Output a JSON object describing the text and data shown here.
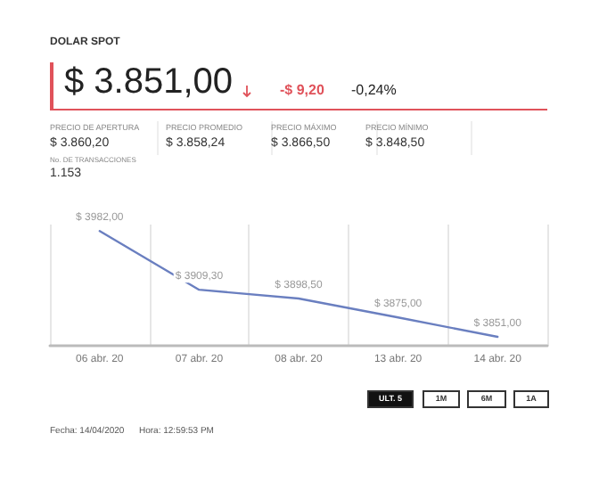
{
  "chart_data": {
    "type": "line",
    "title": "DOLAR SPOT",
    "annotations": [
      "$ 3.851,00",
      "-$ 9,20",
      "-0,24%",
      "PRECIO DE APERTURA",
      "$ 3.860,20",
      "PRECIO PROMEDIO",
      "$ 3.858,24",
      "PRECIO MÁXIMO",
      "$ 3.866,50",
      "PRECIO MÍNIMO",
      "$ 3.848,50",
      "No. DE TRANSACCIONES",
      "1.153",
      "ULT. 5",
      "1M",
      "6M",
      "1A",
      "Fecha: 14/04/2020",
      "Hora: 12:59:53 PM"
    ],
    "categories": [
      "06 abr. 20",
      "07 abr. 20",
      "08 abr. 20",
      "13 abr. 20",
      "14 abr. 20"
    ],
    "series": [
      {
        "color": "#6a7fc0",
        "values": [
          3982,
          3909.3,
          3898.5,
          3875,
          3851
        ],
        "value_labels": [
          "$ 3982,00",
          "$ 3909,30",
          "$ 3898,50",
          "$ 3875,00",
          "$ 3851,00"
        ]
      }
    ],
    "grid": "x",
    "marker": "none",
    "line_style": "solid"
  }
}
